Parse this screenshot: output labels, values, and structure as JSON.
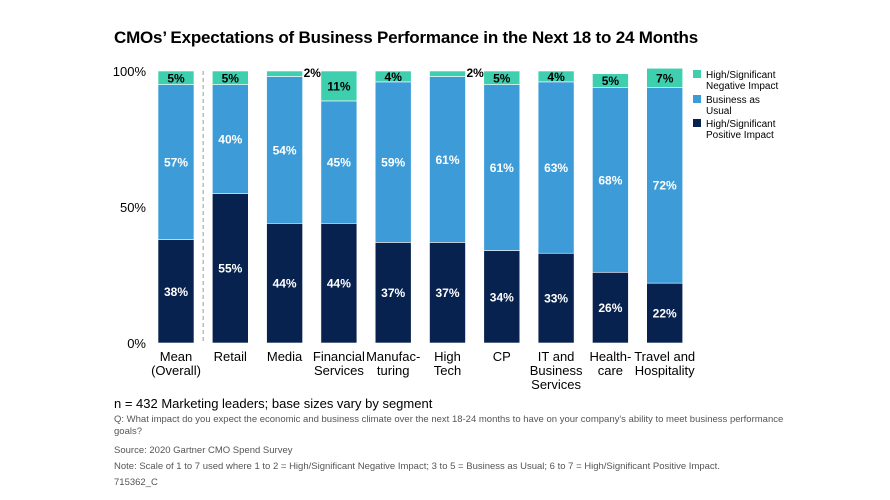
{
  "title": "CMOs’ Expectations of Business Performance in the Next 18 to 24 Months",
  "colors": {
    "negative": "#3ecfae",
    "usual": "#3d9cd8",
    "positive": "#08224f",
    "divider": "#999999"
  },
  "chart_data": {
    "type": "bar",
    "stacked": true,
    "title": "CMOs’ Expectations of Business Performance in the Next 18 to 24 Months",
    "categories": [
      [
        "Mean",
        "(Overall)"
      ],
      [
        "Retail"
      ],
      [
        "Media"
      ],
      [
        "Financial",
        "Services"
      ],
      [
        "Manufac-",
        "turing"
      ],
      [
        "High",
        "Tech"
      ],
      [
        "CP"
      ],
      [
        "IT and",
        "Business",
        "Services"
      ],
      [
        "Health-",
        "care"
      ],
      [
        "Travel and",
        "Hospitality"
      ]
    ],
    "series": [
      {
        "name": "High/Significant Positive Impact",
        "legend_lines": [
          "High/Significant",
          "Positive Impact"
        ],
        "color": "#08224f",
        "values": [
          38,
          55,
          44,
          44,
          37,
          37,
          34,
          33,
          26,
          22
        ]
      },
      {
        "name": "Business as Usual",
        "legend_lines": [
          "Business as",
          "Usual"
        ],
        "color": "#3d9cd8",
        "values": [
          57,
          40,
          54,
          45,
          59,
          61,
          61,
          63,
          68,
          72
        ]
      },
      {
        "name": "High/Significant Negative Impact",
        "legend_lines": [
          "High/Significant",
          "Negative Impact"
        ],
        "color": "#3ecfae",
        "values": [
          5,
          5,
          2,
          11,
          4,
          2,
          5,
          4,
          5,
          7
        ]
      }
    ],
    "y_ticks": [
      "0%",
      "50%",
      "100%"
    ],
    "ylim": [
      0,
      100
    ],
    "legend_position": "right",
    "divider_after_first": true
  },
  "footer": {
    "n": "n = 432 Marketing leaders; base sizes vary by segment",
    "question": "Q: What impact do you expect the economic and business climate over the next 18-24 months to have on your company's ability to meet business performance goals?",
    "source": "Source: 2020 Gartner CMO Spend Survey",
    "note": "Note: Scale of 1 to 7 used where 1 to 2 = High/Significant Negative Impact; 3 to 5 = Business as Usual; 6 to 7 = High/Significant Positive Impact.",
    "code": "715362_C"
  }
}
